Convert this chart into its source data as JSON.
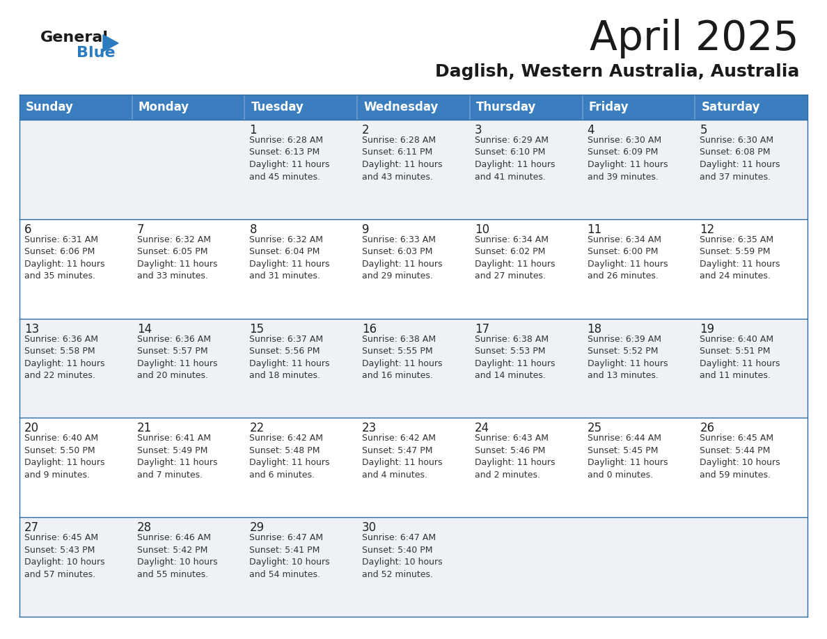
{
  "title": "April 2025",
  "subtitle": "Daglish, Western Australia, Australia",
  "header_bg": "#3a7ebf",
  "header_text": "#ffffff",
  "days_of_week": [
    "Sunday",
    "Monday",
    "Tuesday",
    "Wednesday",
    "Thursday",
    "Friday",
    "Saturday"
  ],
  "row_bg_light": "#eef2f7",
  "row_bg_white": "#ffffff",
  "cell_border_color": "#2d6aa0",
  "text_color": "#222222",
  "info_color": "#333333",
  "calendar_data": [
    [
      {
        "day": null,
        "info": null
      },
      {
        "day": null,
        "info": null
      },
      {
        "day": 1,
        "info": "Sunrise: 6:28 AM\nSunset: 6:13 PM\nDaylight: 11 hours\nand 45 minutes."
      },
      {
        "day": 2,
        "info": "Sunrise: 6:28 AM\nSunset: 6:11 PM\nDaylight: 11 hours\nand 43 minutes."
      },
      {
        "day": 3,
        "info": "Sunrise: 6:29 AM\nSunset: 6:10 PM\nDaylight: 11 hours\nand 41 minutes."
      },
      {
        "day": 4,
        "info": "Sunrise: 6:30 AM\nSunset: 6:09 PM\nDaylight: 11 hours\nand 39 minutes."
      },
      {
        "day": 5,
        "info": "Sunrise: 6:30 AM\nSunset: 6:08 PM\nDaylight: 11 hours\nand 37 minutes."
      }
    ],
    [
      {
        "day": 6,
        "info": "Sunrise: 6:31 AM\nSunset: 6:06 PM\nDaylight: 11 hours\nand 35 minutes."
      },
      {
        "day": 7,
        "info": "Sunrise: 6:32 AM\nSunset: 6:05 PM\nDaylight: 11 hours\nand 33 minutes."
      },
      {
        "day": 8,
        "info": "Sunrise: 6:32 AM\nSunset: 6:04 PM\nDaylight: 11 hours\nand 31 minutes."
      },
      {
        "day": 9,
        "info": "Sunrise: 6:33 AM\nSunset: 6:03 PM\nDaylight: 11 hours\nand 29 minutes."
      },
      {
        "day": 10,
        "info": "Sunrise: 6:34 AM\nSunset: 6:02 PM\nDaylight: 11 hours\nand 27 minutes."
      },
      {
        "day": 11,
        "info": "Sunrise: 6:34 AM\nSunset: 6:00 PM\nDaylight: 11 hours\nand 26 minutes."
      },
      {
        "day": 12,
        "info": "Sunrise: 6:35 AM\nSunset: 5:59 PM\nDaylight: 11 hours\nand 24 minutes."
      }
    ],
    [
      {
        "day": 13,
        "info": "Sunrise: 6:36 AM\nSunset: 5:58 PM\nDaylight: 11 hours\nand 22 minutes."
      },
      {
        "day": 14,
        "info": "Sunrise: 6:36 AM\nSunset: 5:57 PM\nDaylight: 11 hours\nand 20 minutes."
      },
      {
        "day": 15,
        "info": "Sunrise: 6:37 AM\nSunset: 5:56 PM\nDaylight: 11 hours\nand 18 minutes."
      },
      {
        "day": 16,
        "info": "Sunrise: 6:38 AM\nSunset: 5:55 PM\nDaylight: 11 hours\nand 16 minutes."
      },
      {
        "day": 17,
        "info": "Sunrise: 6:38 AM\nSunset: 5:53 PM\nDaylight: 11 hours\nand 14 minutes."
      },
      {
        "day": 18,
        "info": "Sunrise: 6:39 AM\nSunset: 5:52 PM\nDaylight: 11 hours\nand 13 minutes."
      },
      {
        "day": 19,
        "info": "Sunrise: 6:40 AM\nSunset: 5:51 PM\nDaylight: 11 hours\nand 11 minutes."
      }
    ],
    [
      {
        "day": 20,
        "info": "Sunrise: 6:40 AM\nSunset: 5:50 PM\nDaylight: 11 hours\nand 9 minutes."
      },
      {
        "day": 21,
        "info": "Sunrise: 6:41 AM\nSunset: 5:49 PM\nDaylight: 11 hours\nand 7 minutes."
      },
      {
        "day": 22,
        "info": "Sunrise: 6:42 AM\nSunset: 5:48 PM\nDaylight: 11 hours\nand 6 minutes."
      },
      {
        "day": 23,
        "info": "Sunrise: 6:42 AM\nSunset: 5:47 PM\nDaylight: 11 hours\nand 4 minutes."
      },
      {
        "day": 24,
        "info": "Sunrise: 6:43 AM\nSunset: 5:46 PM\nDaylight: 11 hours\nand 2 minutes."
      },
      {
        "day": 25,
        "info": "Sunrise: 6:44 AM\nSunset: 5:45 PM\nDaylight: 11 hours\nand 0 minutes."
      },
      {
        "day": 26,
        "info": "Sunrise: 6:45 AM\nSunset: 5:44 PM\nDaylight: 10 hours\nand 59 minutes."
      }
    ],
    [
      {
        "day": 27,
        "info": "Sunrise: 6:45 AM\nSunset: 5:43 PM\nDaylight: 10 hours\nand 57 minutes."
      },
      {
        "day": 28,
        "info": "Sunrise: 6:46 AM\nSunset: 5:42 PM\nDaylight: 10 hours\nand 55 minutes."
      },
      {
        "day": 29,
        "info": "Sunrise: 6:47 AM\nSunset: 5:41 PM\nDaylight: 10 hours\nand 54 minutes."
      },
      {
        "day": 30,
        "info": "Sunrise: 6:47 AM\nSunset: 5:40 PM\nDaylight: 10 hours\nand 52 minutes."
      },
      {
        "day": null,
        "info": null
      },
      {
        "day": null,
        "info": null
      },
      {
        "day": null,
        "info": null
      }
    ]
  ],
  "logo_general_color": "#1a1a1a",
  "logo_blue_color": "#2a7bbf",
  "logo_triangle_color": "#2a7bbf",
  "title_fontsize": 42,
  "subtitle_fontsize": 18,
  "header_fontsize": 12,
  "day_num_fontsize": 12,
  "info_fontsize": 9
}
